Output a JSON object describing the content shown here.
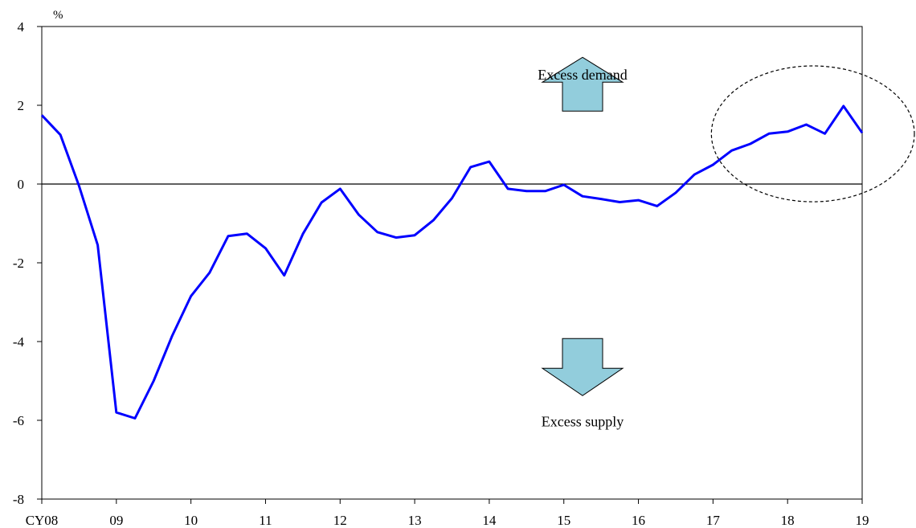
{
  "chart_data": {
    "type": "line",
    "unit_label": "%",
    "ylim": [
      -8,
      4
    ],
    "yticks": [
      -8,
      -6,
      -4,
      -2,
      0,
      2,
      4
    ],
    "ytick_labels": [
      "-8",
      "-6",
      "-4",
      "-2",
      "0",
      "2",
      "4"
    ],
    "xlim": [
      2008,
      2019
    ],
    "xticks": [
      2008,
      2009,
      2010,
      2011,
      2012,
      2013,
      2014,
      2015,
      2016,
      2017,
      2018,
      2019
    ],
    "xtick_labels": [
      "CY08",
      "09",
      "10",
      "11",
      "12",
      "13",
      "14",
      "15",
      "16",
      "17",
      "18",
      "19"
    ],
    "grid": false,
    "zero_line": true,
    "series": [
      {
        "name": "",
        "color": "#0000ff",
        "x": [
          2008.0,
          2008.25,
          2008.5,
          2008.75,
          2009.0,
          2009.25,
          2009.5,
          2009.75,
          2010.0,
          2010.25,
          2010.5,
          2010.75,
          2011.0,
          2011.25,
          2011.5,
          2011.75,
          2012.0,
          2012.25,
          2012.5,
          2012.75,
          2013.0,
          2013.25,
          2013.5,
          2013.75,
          2014.0,
          2014.25,
          2014.5,
          2014.75,
          2015.0,
          2015.25,
          2015.5,
          2015.75,
          2016.0,
          2016.25,
          2016.5,
          2016.75,
          2017.0,
          2017.25,
          2017.5,
          2017.75,
          2018.0,
          2018.25,
          2018.5,
          2018.75,
          2019.0
        ],
        "values": [
          1.75,
          1.25,
          -0.05,
          -1.55,
          -5.8,
          -5.95,
          -5.0,
          -3.85,
          -2.85,
          -2.25,
          -1.32,
          -1.26,
          -1.63,
          -2.32,
          -1.27,
          -0.47,
          -0.12,
          -0.78,
          -1.22,
          -1.36,
          -1.3,
          -0.92,
          -0.36,
          0.43,
          0.57,
          -0.12,
          -0.18,
          -0.18,
          -0.02,
          -0.31,
          -0.38,
          -0.46,
          -0.41,
          -0.56,
          -0.22,
          0.24,
          0.49,
          0.85,
          1.02,
          1.28,
          1.33,
          1.51,
          1.28,
          1.98,
          1.3
        ]
      }
    ],
    "annotations": {
      "excess_demand": "Excess demand",
      "excess_supply": "Excess supply"
    },
    "arrow_color": "#92cddc",
    "highlight_ellipse": {
      "x_range": [
        2017.0,
        2019.7
      ],
      "y_range": [
        -0.45,
        3.0
      ]
    }
  }
}
